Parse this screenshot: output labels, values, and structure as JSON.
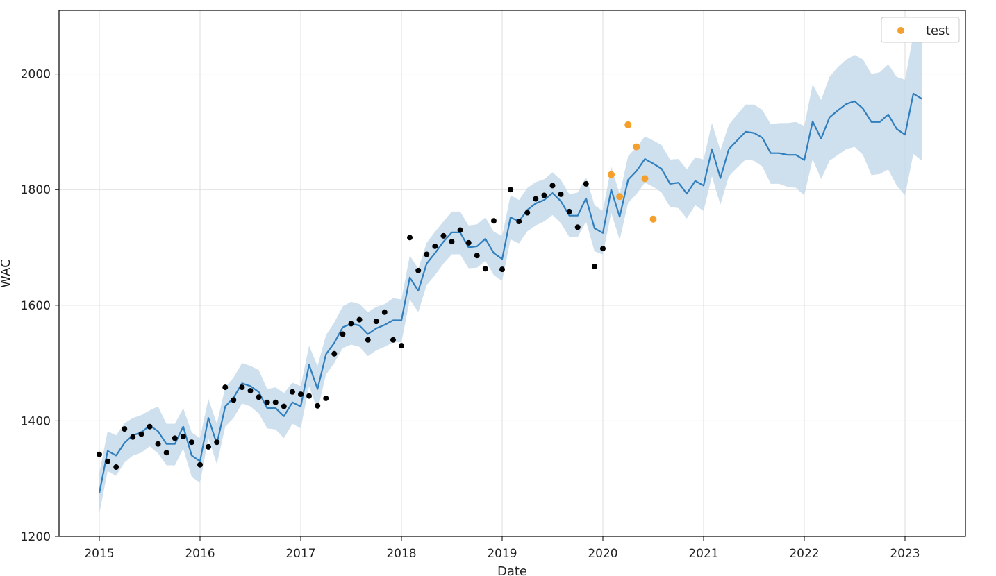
{
  "colors": {
    "forecast_line": "#2f7ebd",
    "interval_band": "#c5d9ea",
    "observed_points": "#000000",
    "test_points": "#f5a02c",
    "grid": "#dedede"
  },
  "chart_data": {
    "type": "line",
    "xlabel": "Date",
    "ylabel": "WAC",
    "xlim": [
      2014.6,
      2023.6
    ],
    "ylim": [
      1200,
      2110
    ],
    "x_ticks": [
      2015,
      2016,
      2017,
      2018,
      2019,
      2020,
      2021,
      2022,
      2023
    ],
    "x_tick_labels": [
      "2015",
      "2016",
      "2017",
      "2018",
      "2019",
      "2020",
      "2021",
      "2022",
      "2023"
    ],
    "y_ticks": [
      1200,
      1400,
      1600,
      1800,
      2000
    ],
    "y_tick_labels": [
      "1200",
      "1400",
      "1600",
      "1800",
      "2000"
    ],
    "grid": true,
    "legend": {
      "placement": "top-right",
      "entries": [
        {
          "label": "test",
          "color": "#f5a02c",
          "marker": "dot"
        }
      ]
    },
    "series": [
      {
        "kind": "forecast",
        "x": [
          2015.0,
          2015.083,
          2015.167,
          2015.25,
          2015.333,
          2015.417,
          2015.5,
          2015.583,
          2015.667,
          2015.75,
          2015.833,
          2015.917,
          2016.0,
          2016.083,
          2016.167,
          2016.25,
          2016.333,
          2016.417,
          2016.5,
          2016.583,
          2016.667,
          2016.75,
          2016.833,
          2016.917,
          2017.0,
          2017.083,
          2017.167,
          2017.25,
          2017.333,
          2017.417,
          2017.5,
          2017.583,
          2017.667,
          2017.75,
          2017.833,
          2017.917,
          2018.0,
          2018.083,
          2018.167,
          2018.25,
          2018.333,
          2018.417,
          2018.5,
          2018.583,
          2018.667,
          2018.75,
          2018.833,
          2018.917,
          2019.0,
          2019.083,
          2019.167,
          2019.25,
          2019.333,
          2019.417,
          2019.5,
          2019.583,
          2019.667,
          2019.75,
          2019.833,
          2019.917,
          2020.0,
          2020.083,
          2020.167,
          2020.25,
          2020.333,
          2020.417,
          2020.5,
          2020.583,
          2020.667,
          2020.75,
          2020.833,
          2020.917,
          2021.0,
          2021.083,
          2021.167,
          2021.25,
          2021.333,
          2021.417,
          2021.5,
          2021.583,
          2021.667,
          2021.75,
          2021.833,
          2021.917,
          2022.0,
          2022.083,
          2022.167,
          2022.25,
          2022.333,
          2022.417,
          2022.5,
          2022.583,
          2022.667,
          2022.75,
          2022.833,
          2022.917,
          2023.0,
          2023.083,
          2023.167
        ],
        "yhat": [
          1275,
          1348,
          1340,
          1362,
          1375,
          1380,
          1392,
          1382,
          1360,
          1360,
          1390,
          1340,
          1330,
          1405,
          1360,
          1425,
          1440,
          1465,
          1460,
          1450,
          1422,
          1422,
          1408,
          1432,
          1425,
          1497,
          1455,
          1515,
          1535,
          1562,
          1568,
          1565,
          1550,
          1560,
          1566,
          1574,
          1574,
          1648,
          1625,
          1672,
          1690,
          1710,
          1726,
          1726,
          1700,
          1702,
          1715,
          1690,
          1680,
          1752,
          1745,
          1765,
          1776,
          1782,
          1794,
          1780,
          1755,
          1755,
          1785,
          1733,
          1725,
          1800,
          1753,
          1817,
          1832,
          1853,
          1845,
          1836,
          1810,
          1812,
          1793,
          1815,
          1807,
          1870,
          1820,
          1870,
          1885,
          1900,
          1898,
          1890,
          1863,
          1863,
          1860,
          1860,
          1851,
          1918,
          1888,
          1925,
          1937,
          1948,
          1953,
          1940,
          1917,
          1917,
          1930,
          1905,
          1895,
          1966,
          1957
        ],
        "yhat_upper": [
          1310,
          1382,
          1375,
          1396,
          1405,
          1410,
          1418,
          1425,
          1395,
          1395,
          1422,
          1380,
          1370,
          1438,
          1395,
          1458,
          1475,
          1500,
          1495,
          1488,
          1455,
          1458,
          1448,
          1466,
          1460,
          1530,
          1495,
          1548,
          1570,
          1598,
          1606,
          1602,
          1588,
          1597,
          1602,
          1612,
          1610,
          1686,
          1663,
          1708,
          1727,
          1745,
          1762,
          1762,
          1738,
          1740,
          1752,
          1727,
          1720,
          1790,
          1782,
          1803,
          1813,
          1818,
          1830,
          1817,
          1792,
          1795,
          1822,
          1773,
          1763,
          1840,
          1792,
          1858,
          1873,
          1892,
          1885,
          1877,
          1852,
          1853,
          1835,
          1856,
          1852,
          1915,
          1868,
          1912,
          1930,
          1947,
          1947,
          1938,
          1913,
          1915,
          1915,
          1917,
          1910,
          1982,
          1955,
          1995,
          2012,
          2025,
          2033,
          2025,
          2000,
          2003,
          2017,
          1995,
          1990,
          2068,
          2062
        ],
        "yhat_lower": [
          1240,
          1313,
          1305,
          1328,
          1340,
          1345,
          1356,
          1344,
          1323,
          1323,
          1352,
          1303,
          1293,
          1370,
          1325,
          1390,
          1405,
          1430,
          1425,
          1413,
          1387,
          1385,
          1370,
          1395,
          1387,
          1460,
          1418,
          1480,
          1500,
          1526,
          1532,
          1528,
          1512,
          1522,
          1528,
          1536,
          1536,
          1610,
          1588,
          1635,
          1652,
          1672,
          1688,
          1688,
          1664,
          1665,
          1677,
          1652,
          1642,
          1714,
          1707,
          1728,
          1738,
          1745,
          1756,
          1742,
          1718,
          1718,
          1745,
          1693,
          1688,
          1760,
          1713,
          1777,
          1792,
          1812,
          1805,
          1795,
          1770,
          1768,
          1750,
          1773,
          1763,
          1823,
          1774,
          1823,
          1838,
          1852,
          1850,
          1840,
          1810,
          1810,
          1805,
          1803,
          1790,
          1853,
          1818,
          1850,
          1860,
          1870,
          1874,
          1860,
          1825,
          1827,
          1835,
          1807,
          1790,
          1862,
          1850
        ]
      },
      {
        "kind": "observed",
        "x": [
          2015.0,
          2015.083,
          2015.167,
          2015.25,
          2015.333,
          2015.417,
          2015.5,
          2015.583,
          2015.667,
          2015.75,
          2015.833,
          2015.917,
          2016.0,
          2016.083,
          2016.167,
          2016.25,
          2016.333,
          2016.417,
          2016.5,
          2016.583,
          2016.667,
          2016.75,
          2016.833,
          2016.917,
          2017.0,
          2017.083,
          2017.167,
          2017.25,
          2017.333,
          2017.417,
          2017.5,
          2017.583,
          2017.667,
          2017.75,
          2017.833,
          2017.917,
          2018.0,
          2018.083,
          2018.167,
          2018.25,
          2018.333,
          2018.417,
          2018.5,
          2018.583,
          2018.667,
          2018.75,
          2018.833,
          2018.917,
          2019.0,
          2019.083,
          2019.167,
          2019.25,
          2019.333,
          2019.417,
          2019.5,
          2019.583,
          2019.667,
          2019.75,
          2019.833,
          2019.917,
          2020.0
        ],
        "y": [
          1342,
          1330,
          1320,
          1386,
          1372,
          1377,
          1390,
          1360,
          1345,
          1370,
          1373,
          1363,
          1324,
          1355,
          1363,
          1458,
          1436,
          1458,
          1452,
          1441,
          1432,
          1432,
          1425,
          1450,
          1446,
          1443,
          1426,
          1439,
          1516,
          1550,
          1568,
          1575,
          1540,
          1572,
          1588,
          1540,
          1530,
          1717,
          1660,
          1688,
          1702,
          1720,
          1710,
          1730,
          1708,
          1686,
          1663,
          1746,
          1662,
          1800,
          1745,
          1760,
          1784,
          1790,
          1807,
          1792,
          1762,
          1735,
          1810,
          1667,
          1698
        ]
      },
      {
        "kind": "test",
        "name": "test",
        "x": [
          2020.083,
          2020.167,
          2020.25,
          2020.333,
          2020.417,
          2020.5
        ],
        "y": [
          1826,
          1788,
          1912,
          1874,
          1819,
          1749
        ]
      }
    ]
  }
}
